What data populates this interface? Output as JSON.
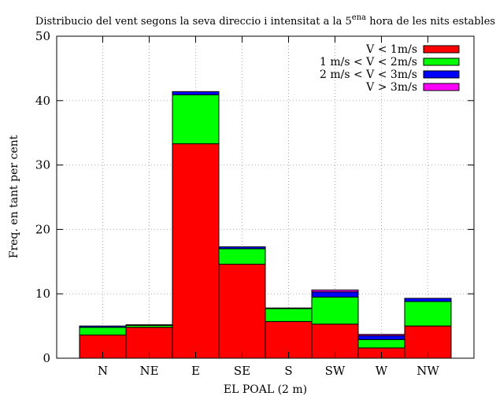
{
  "chart_data": {
    "type": "bar",
    "stacked": true,
    "title": {
      "before": "Distribucio del vent segons la seva direccio i intensitat a la 5",
      "superscript": "ena",
      "after": " hora de les nits estables"
    },
    "xlabel": "EL POAL (2 m)",
    "ylabel": "Freq. en tant per cent",
    "categories": [
      "N",
      "NE",
      "E",
      "SE",
      "S",
      "SW",
      "W",
      "NW"
    ],
    "ylim": [
      0,
      50
    ],
    "yticks": [
      0,
      10,
      20,
      30,
      40,
      50
    ],
    "grid": true,
    "legend_position": "top-right",
    "series": [
      {
        "name": "V < 1m/s",
        "color": "#ff0000",
        "values": [
          3.6,
          4.8,
          33.3,
          14.6,
          5.7,
          5.3,
          1.6,
          5.0
        ]
      },
      {
        "name": "1 m/s < V < 2m/s",
        "color": "#00ff00",
        "values": [
          1.2,
          0.3,
          7.6,
          2.4,
          2.0,
          4.2,
          1.3,
          3.8
        ]
      },
      {
        "name": "2 m/s < V < 3m/s",
        "color": "#0000ff",
        "values": [
          0.2,
          0.1,
          0.5,
          0.3,
          0.1,
          0.8,
          0.6,
          0.5
        ]
      },
      {
        "name": "V > 3m/s",
        "color": "#ff00ff",
        "values": [
          0.0,
          0.0,
          0.0,
          0.0,
          0.0,
          0.3,
          0.2,
          0.0
        ]
      }
    ]
  }
}
